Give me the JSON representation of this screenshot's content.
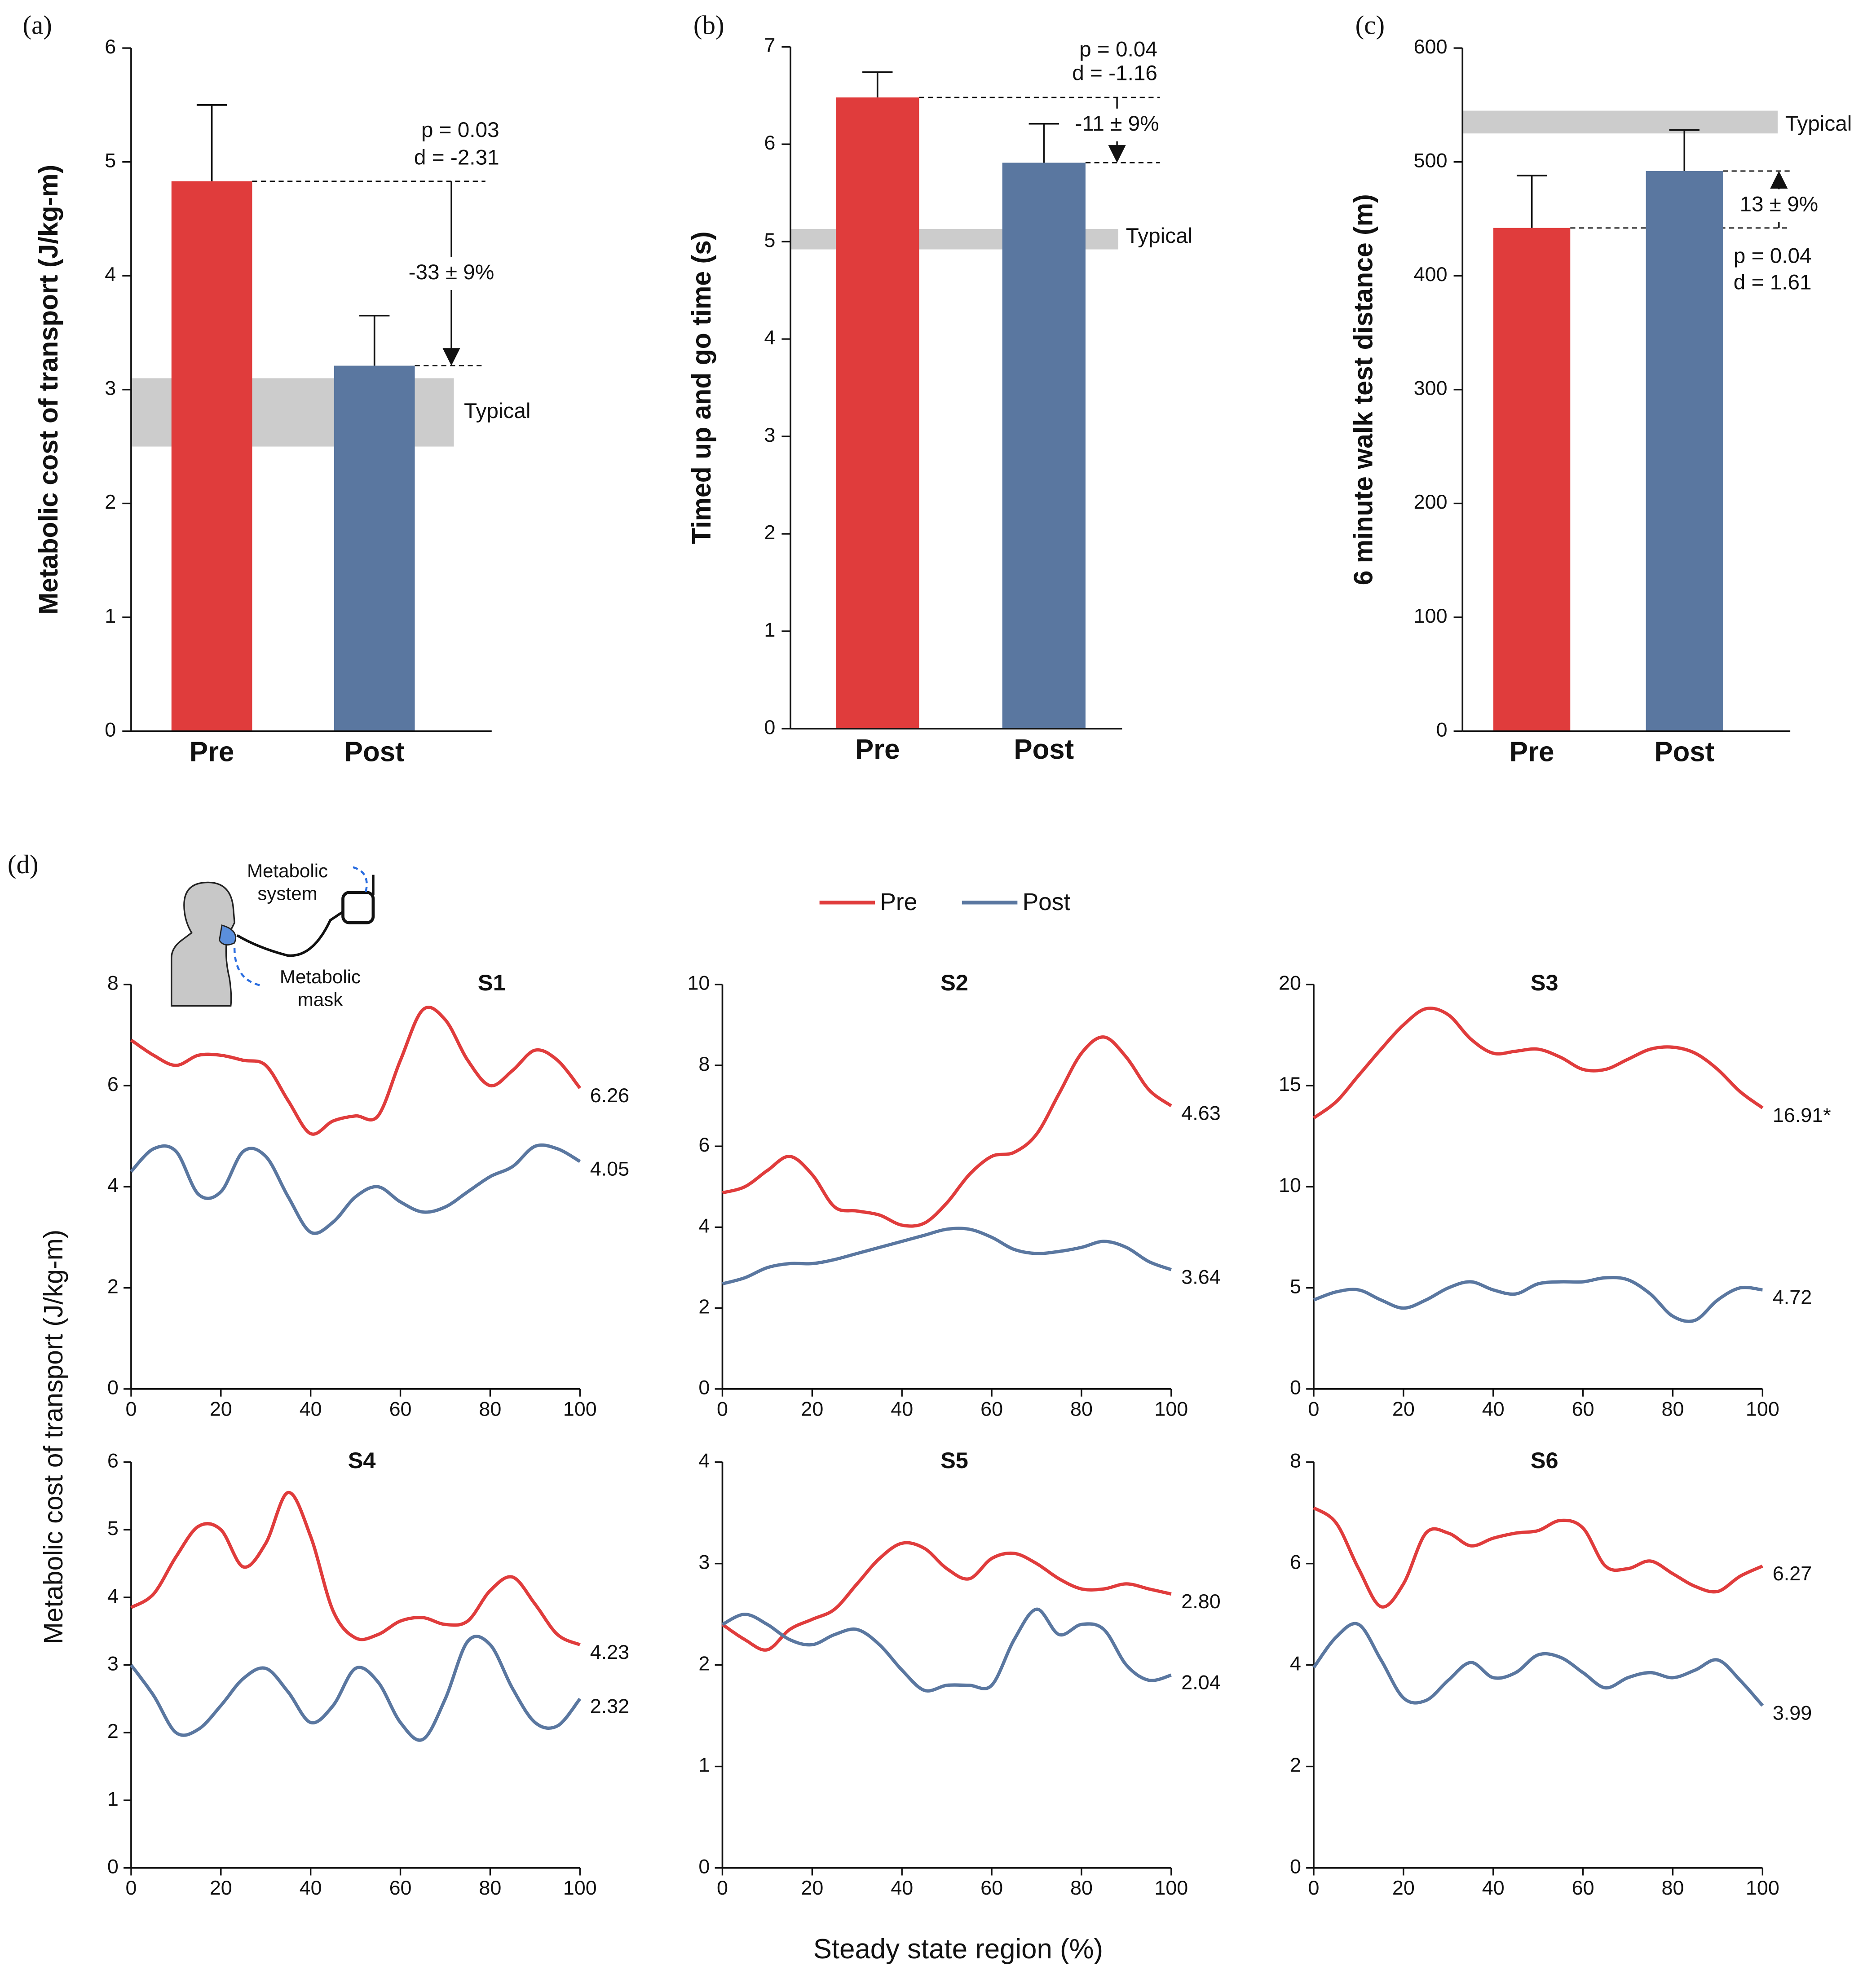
{
  "figure": {
    "panel_d": "(d)",
    "shared_y_label": "Metabolic cost of transport (J/kg-m)",
    "shared_x_label": "Steady state region (%)",
    "icon_labels": [
      "Metabolic",
      "system",
      "Metabolic",
      "mask"
    ]
  },
  "chart_data": [
    {
      "type": "bar",
      "panel": "(a)",
      "y_label": "Metabolic cost of transport (J/kg-m)",
      "categories": [
        "Pre",
        "Post"
      ],
      "values": [
        4.83,
        3.21
      ],
      "errors": [
        0.67,
        0.44
      ],
      "colors": [
        "#e03c3c",
        "#5a77a0"
      ],
      "ylim": [
        0,
        6
      ],
      "yticks": [
        0,
        1,
        2,
        3,
        4,
        5,
        6
      ],
      "typical": {
        "label": "Typical",
        "range": [
          2.5,
          3.1
        ],
        "color": "#cccccc"
      },
      "annotations": {
        "p": "p = 0.03",
        "d": "d = -2.31",
        "change": "-33 ± 9%"
      }
    },
    {
      "type": "bar",
      "panel": "(b)",
      "y_label": "Timed up and go time (s)",
      "categories": [
        "Pre",
        "Post"
      ],
      "values": [
        6.48,
        5.81
      ],
      "errors": [
        0.26,
        0.4
      ],
      "colors": [
        "#e03c3c",
        "#5a77a0"
      ],
      "ylim": [
        0,
        7
      ],
      "yticks": [
        0,
        1,
        2,
        3,
        4,
        5,
        6,
        7
      ],
      "typical": {
        "label": "Typical",
        "range": [
          4.92,
          5.13
        ],
        "color": "#cccccc"
      },
      "annotations": {
        "p": "p = 0.04",
        "d": "d = -1.16",
        "change": "-11 ± 9%"
      }
    },
    {
      "type": "bar",
      "panel": "(c)",
      "y_label": "6 minute walk test distance (m)",
      "categories": [
        "Pre",
        "Post"
      ],
      "values": [
        442,
        492
      ],
      "errors": [
        46,
        36
      ],
      "colors": [
        "#e03c3c",
        "#5a77a0"
      ],
      "ylim": [
        0,
        600
      ],
      "yticks": [
        0,
        100,
        200,
        300,
        400,
        500,
        600
      ],
      "typical": {
        "label": "Typical",
        "range": [
          525,
          545
        ],
        "color": "#cccccc"
      },
      "annotations": {
        "p": "p = 0.04",
        "d": "d = 1.61",
        "change": "13 ± 9%"
      }
    },
    {
      "type": "line",
      "title": "S1",
      "x": [
        0,
        5,
        10,
        15,
        20,
        25,
        30,
        35,
        40,
        45,
        50,
        55,
        60,
        65,
        70,
        75,
        80,
        85,
        90,
        95,
        100
      ],
      "xlim": [
        0,
        100
      ],
      "xticks": [
        0,
        20,
        40,
        60,
        80,
        100
      ],
      "ylim": [
        0,
        8
      ],
      "yticks": [
        0,
        2,
        4,
        6,
        8
      ],
      "series": [
        {
          "name": "Pre",
          "color": "#e03c3c",
          "end_label": "6.26",
          "values": [
            6.9,
            6.6,
            6.4,
            6.6,
            6.6,
            6.5,
            6.4,
            5.7,
            5.05,
            5.3,
            5.4,
            5.4,
            6.5,
            7.5,
            7.3,
            6.5,
            6.0,
            6.3,
            6.7,
            6.5,
            5.95
          ]
        },
        {
          "name": "Post",
          "color": "#5a77a0",
          "end_label": "4.05",
          "values": [
            4.3,
            4.75,
            4.7,
            3.85,
            3.9,
            4.7,
            4.6,
            3.8,
            3.1,
            3.3,
            3.8,
            4.0,
            3.7,
            3.5,
            3.6,
            3.9,
            4.2,
            4.4,
            4.8,
            4.75,
            4.5
          ]
        }
      ]
    },
    {
      "type": "line",
      "title": "S2",
      "x": [
        0,
        5,
        10,
        15,
        20,
        25,
        30,
        35,
        40,
        45,
        50,
        55,
        60,
        65,
        70,
        75,
        80,
        85,
        90,
        95,
        100
      ],
      "xlim": [
        0,
        100
      ],
      "xticks": [
        0,
        20,
        40,
        60,
        80,
        100
      ],
      "ylim": [
        0,
        10
      ],
      "yticks": [
        0,
        2,
        4,
        6,
        8,
        10
      ],
      "series": [
        {
          "name": "Pre",
          "color": "#e03c3c",
          "end_label": "4.63",
          "values": [
            4.85,
            5.0,
            5.4,
            5.75,
            5.3,
            4.5,
            4.4,
            4.3,
            4.05,
            4.1,
            4.6,
            5.3,
            5.75,
            5.85,
            6.3,
            7.3,
            8.3,
            8.7,
            8.2,
            7.4,
            7.0
          ]
        },
        {
          "name": "Post",
          "color": "#5a77a0",
          "end_label": "3.64",
          "values": [
            2.6,
            2.75,
            3.0,
            3.1,
            3.1,
            3.2,
            3.35,
            3.5,
            3.65,
            3.8,
            3.95,
            3.95,
            3.75,
            3.45,
            3.35,
            3.4,
            3.5,
            3.65,
            3.5,
            3.15,
            2.95
          ]
        }
      ]
    },
    {
      "type": "line",
      "title": "S3",
      "x": [
        0,
        5,
        10,
        15,
        20,
        25,
        30,
        35,
        40,
        45,
        50,
        55,
        60,
        65,
        70,
        75,
        80,
        85,
        90,
        95,
        100
      ],
      "xlim": [
        0,
        100
      ],
      "xticks": [
        0,
        20,
        40,
        60,
        80,
        100
      ],
      "ylim": [
        0,
        20
      ],
      "yticks": [
        0,
        5,
        10,
        15,
        20
      ],
      "series": [
        {
          "name": "Pre",
          "color": "#e03c3c",
          "end_label": "16.91*",
          "values": [
            13.4,
            14.2,
            15.5,
            16.8,
            18.0,
            18.8,
            18.5,
            17.3,
            16.6,
            16.7,
            16.8,
            16.4,
            15.8,
            15.8,
            16.3,
            16.8,
            16.9,
            16.6,
            15.8,
            14.7,
            13.9
          ]
        },
        {
          "name": "Post",
          "color": "#5a77a0",
          "end_label": "4.72",
          "values": [
            4.4,
            4.8,
            4.9,
            4.4,
            4.0,
            4.4,
            5.0,
            5.3,
            4.9,
            4.7,
            5.2,
            5.3,
            5.3,
            5.5,
            5.4,
            4.7,
            3.6,
            3.4,
            4.4,
            5.0,
            4.9
          ]
        }
      ]
    },
    {
      "type": "line",
      "title": "S4",
      "x": [
        0,
        5,
        10,
        15,
        20,
        25,
        30,
        35,
        40,
        45,
        50,
        55,
        60,
        65,
        70,
        75,
        80,
        85,
        90,
        95,
        100
      ],
      "xlim": [
        0,
        100
      ],
      "xticks": [
        0,
        20,
        40,
        60,
        80,
        100
      ],
      "ylim": [
        0,
        6
      ],
      "yticks": [
        0,
        1,
        2,
        3,
        4,
        5,
        6
      ],
      "series": [
        {
          "name": "Pre",
          "color": "#e03c3c",
          "end_label": "4.23",
          "values": [
            3.85,
            4.05,
            4.6,
            5.05,
            5.0,
            4.45,
            4.8,
            5.55,
            4.9,
            3.8,
            3.4,
            3.45,
            3.65,
            3.7,
            3.6,
            3.65,
            4.1,
            4.3,
            3.9,
            3.45,
            3.3
          ]
        },
        {
          "name": "Post",
          "color": "#5a77a0",
          "end_label": "2.32",
          "values": [
            3.0,
            2.55,
            2.0,
            2.05,
            2.4,
            2.8,
            2.95,
            2.6,
            2.15,
            2.4,
            2.95,
            2.75,
            2.15,
            1.9,
            2.5,
            3.35,
            3.3,
            2.65,
            2.15,
            2.1,
            2.5
          ]
        }
      ]
    },
    {
      "type": "line",
      "title": "S5",
      "x": [
        0,
        5,
        10,
        15,
        20,
        25,
        30,
        35,
        40,
        45,
        50,
        55,
        60,
        65,
        70,
        75,
        80,
        85,
        90,
        95,
        100
      ],
      "xlim": [
        0,
        100
      ],
      "xticks": [
        0,
        20,
        40,
        60,
        80,
        100
      ],
      "ylim": [
        0,
        4
      ],
      "yticks": [
        0,
        1,
        2,
        3,
        4
      ],
      "series": [
        {
          "name": "Pre",
          "color": "#e03c3c",
          "end_label": "2.80",
          "values": [
            2.4,
            2.25,
            2.15,
            2.35,
            2.45,
            2.55,
            2.8,
            3.05,
            3.2,
            3.15,
            2.95,
            2.85,
            3.05,
            3.1,
            3.0,
            2.85,
            2.75,
            2.75,
            2.8,
            2.75,
            2.7
          ]
        },
        {
          "name": "Post",
          "color": "#5a77a0",
          "end_label": "2.04",
          "values": [
            2.4,
            2.5,
            2.4,
            2.25,
            2.2,
            2.3,
            2.35,
            2.2,
            1.95,
            1.75,
            1.8,
            1.8,
            1.8,
            2.25,
            2.55,
            2.3,
            2.4,
            2.35,
            2.0,
            1.85,
            1.9
          ]
        }
      ]
    },
    {
      "type": "line",
      "title": "S6",
      "x": [
        0,
        5,
        10,
        15,
        20,
        25,
        30,
        35,
        40,
        45,
        50,
        55,
        60,
        65,
        70,
        75,
        80,
        85,
        90,
        95,
        100
      ],
      "xlim": [
        0,
        100
      ],
      "xticks": [
        0,
        20,
        40,
        60,
        80,
        100
      ],
      "ylim": [
        0,
        8
      ],
      "yticks": [
        0,
        2,
        4,
        6,
        8
      ],
      "series": [
        {
          "name": "Pre",
          "color": "#e03c3c",
          "end_label": "6.27",
          "values": [
            7.1,
            6.8,
            5.9,
            5.15,
            5.6,
            6.6,
            6.6,
            6.35,
            6.5,
            6.6,
            6.65,
            6.85,
            6.7,
            5.95,
            5.9,
            6.05,
            5.8,
            5.55,
            5.45,
            5.75,
            5.95
          ]
        },
        {
          "name": "Post",
          "color": "#5a77a0",
          "end_label": "3.99",
          "values": [
            3.95,
            4.55,
            4.8,
            4.1,
            3.35,
            3.3,
            3.7,
            4.05,
            3.75,
            3.85,
            4.2,
            4.15,
            3.85,
            3.55,
            3.75,
            3.85,
            3.75,
            3.9,
            4.1,
            3.7,
            3.2
          ]
        }
      ]
    }
  ]
}
